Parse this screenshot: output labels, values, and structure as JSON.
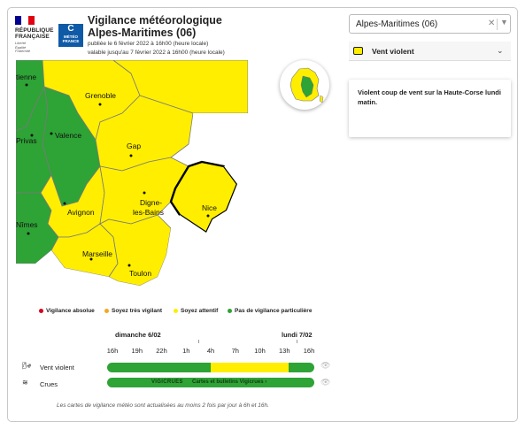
{
  "header": {
    "republic": [
      "RÉPUBLIQUE",
      "FRANÇAISE"
    ],
    "motto": [
      "Liberté",
      "Égalité",
      "Fraternité"
    ],
    "mf_logo_letter": "C",
    "mf_logo_text": [
      "MÉTÉO",
      "FRANCE"
    ],
    "title": "Vigilance météorologique Alpes-Maritimes  (06)",
    "published": "publiée le 6 février 2022 à 16h00 (heure locale)",
    "valid_until": "valable jusqu'au 7 février 2022 à 16h00 (heure locale)",
    "flag_colors": [
      "#000091",
      "#ffffff",
      "#e1000f"
    ]
  },
  "map": {
    "cities": [
      {
        "name": "tienne"
      },
      {
        "name": "Grenoble"
      },
      {
        "name": "Privas"
      },
      {
        "name": "Valence"
      },
      {
        "name": "Gap"
      },
      {
        "name": "Digne-"
      },
      {
        "name": "les-Bains"
      },
      {
        "name": "Avignon"
      },
      {
        "name": "Nice"
      },
      {
        "name": "Nîmes"
      },
      {
        "name": "Marseille"
      },
      {
        "name": "Toulon"
      }
    ],
    "colors": {
      "green": "#2ea336",
      "yellow": "#ffee00",
      "border": "#7a7a7a"
    }
  },
  "department_select": {
    "value": "Alpes-Maritimes  (06)",
    "clear_icon": "close-icon",
    "toggle_icon": "chevron-down-icon"
  },
  "phenomenon": {
    "label": "Vent violent",
    "icon": "wind-icon",
    "toggle_icon": "chevron-down-icon"
  },
  "message": {
    "text": "Violent coup de vent sur la Haute-Corse lundi matin."
  },
  "legend": [
    {
      "label": "Vigilance absolue",
      "color": "#d7001e"
    },
    {
      "label": "Soyez très vigilant",
      "color": "#f5a623"
    },
    {
      "label": "Soyez attentif",
      "color": "#ffee00"
    },
    {
      "label": "Pas de vigilance particulière",
      "color": "#2ea336"
    }
  ],
  "timeline": {
    "days": [
      "dimanche 6/02",
      "lundi 7/02"
    ],
    "hours": [
      "16h",
      "19h",
      "22h",
      "1h",
      "4h",
      "7h",
      "10h",
      "13h",
      "16h"
    ],
    "rows": [
      {
        "label": "Vent violent",
        "icon": "wind-icon",
        "segments": [
          {
            "from_hour_index": 0,
            "to_hour_index": 4,
            "color": "#2ea336"
          },
          {
            "from_hour_index": 4,
            "to_hour_index": 7,
            "color": "#ffee00"
          },
          {
            "from_hour_index": 7,
            "to_hour_index": 8,
            "color": "#2ea336"
          }
        ]
      },
      {
        "label": "Crues",
        "icon": "waves-icon",
        "color": "#2ea336",
        "vigicrues": "VIGICRUES",
        "link": "Cartes et bulletins Vigicrues ›"
      }
    ],
    "visibility_icon": "eye-slash-icon"
  },
  "footer": "Les cartes de vigilance météo sont actualisées au moins 2 fois par jour à 6h et 16h."
}
